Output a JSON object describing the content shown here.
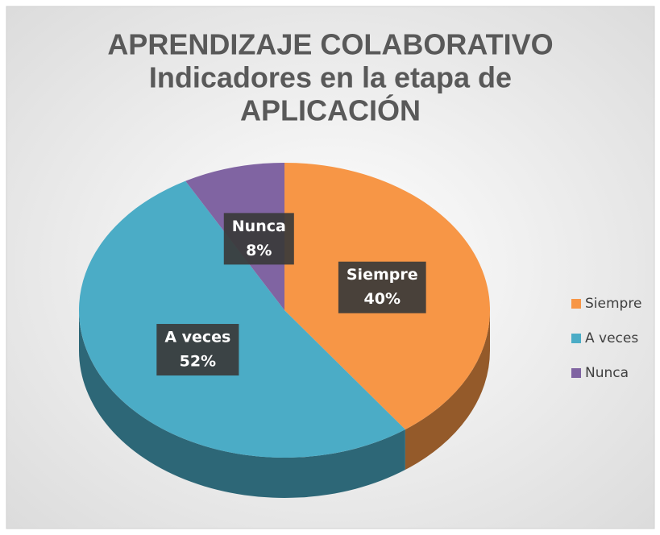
{
  "chart_data": {
    "type": "pie3d",
    "title": [
      "APRENDIZAJE COLABORATIVO",
      "Indicadores en la etapa de",
      "APLICACIÓN"
    ],
    "categories": [
      "Siempre",
      "A veces",
      "Nunca"
    ],
    "values": [
      40,
      52,
      8
    ],
    "value_labels": [
      "40%",
      "52%",
      "8%"
    ],
    "colors": [
      "#f79646",
      "#4bacc6",
      "#8064a2"
    ],
    "legend": "right"
  }
}
